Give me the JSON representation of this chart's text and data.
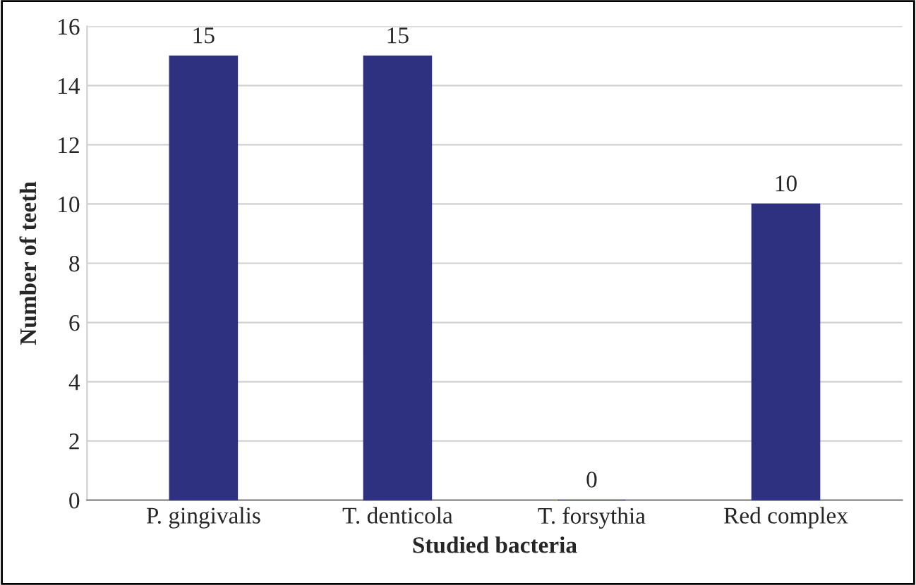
{
  "chart_data": {
    "type": "bar",
    "xlabel": "Studied bacteria",
    "ylabel": "Number of teeth",
    "categories": [
      "P. gingivalis",
      "T. denticola",
      "T. forsythia",
      "Red complex"
    ],
    "values": [
      15,
      15,
      0,
      10
    ],
    "color": "#2e3180",
    "ylim": [
      0,
      16
    ],
    "yticks": [
      0,
      2,
      4,
      6,
      8,
      10,
      12,
      14,
      16
    ],
    "grid": "y",
    "data_labels": true
  }
}
